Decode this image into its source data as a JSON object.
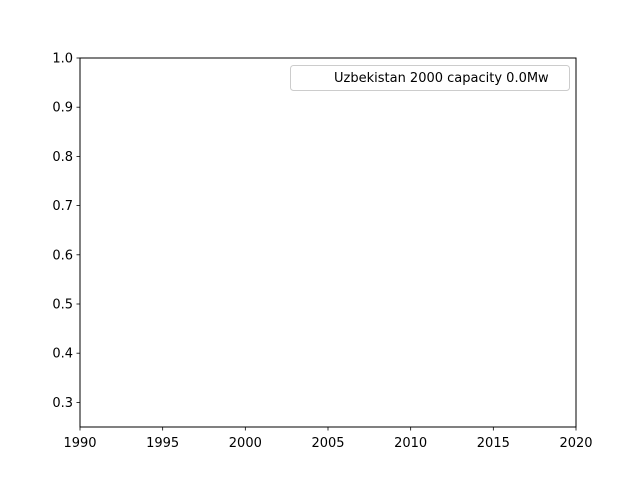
{
  "chart_data": {
    "type": "line",
    "title": "",
    "xlabel": "",
    "ylabel": "",
    "xlim": [
      1990,
      2020
    ],
    "ylim": [
      0.25,
      1.0
    ],
    "x_ticks": [
      "1990",
      "1995",
      "2000",
      "2005",
      "2010",
      "2015",
      "2020"
    ],
    "y_ticks": [
      "0.3",
      "0.4",
      "0.5",
      "0.6",
      "0.7",
      "0.8",
      "0.9",
      "1.0"
    ],
    "grid": false,
    "legend_position": "top-right",
    "series": [
      {
        "name": "Uzbekistan 2000 capacity 0.0Mw",
        "x": [],
        "y": []
      }
    ]
  }
}
